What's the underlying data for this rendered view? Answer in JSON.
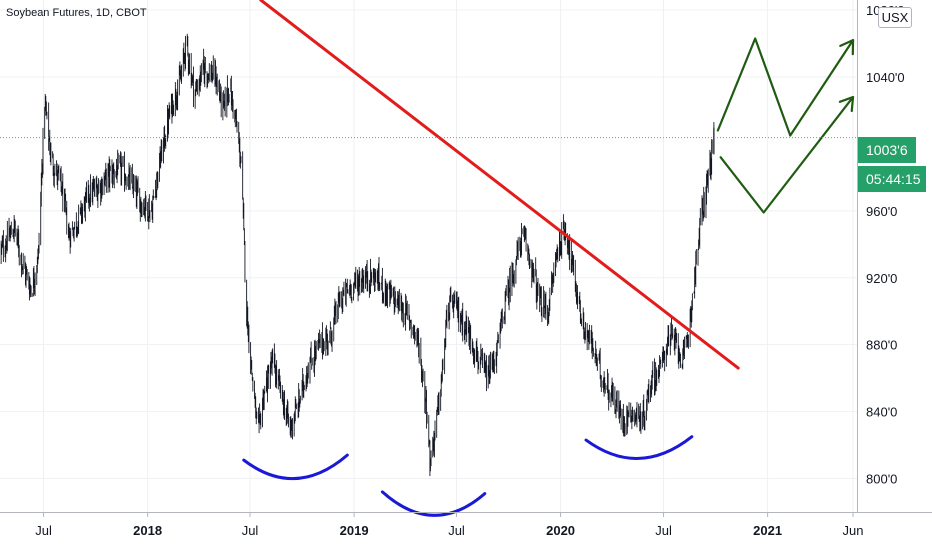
{
  "header": {
    "title": "Soybean Futures, 1D, CBOT"
  },
  "currency_label": "USX",
  "price_tag": {
    "last_price": "1003'6",
    "countdown": "05:44:15",
    "color": "#26a069"
  },
  "colors": {
    "trendline": "#e31b1b",
    "arcs": "#1a1ad6",
    "projection": "#1f5c12",
    "candle": "#131722",
    "grid": "#eef0f3"
  },
  "chart_data": {
    "type": "candlestick",
    "title": "Soybean Futures, 1D, CBOT",
    "xlabel": "",
    "ylabel": "",
    "ylim": [
      780,
      1086
    ],
    "xlim": [
      "2017-04-15",
      "2021-06-08"
    ],
    "x_ticks": [
      {
        "label": "Jul",
        "date": "2017-07-01",
        "bold": false
      },
      {
        "label": "2018",
        "date": "2018-01-01",
        "bold": true
      },
      {
        "label": "Jul",
        "date": "2018-07-01",
        "bold": false
      },
      {
        "label": "2019",
        "date": "2019-01-01",
        "bold": true
      },
      {
        "label": "Jul",
        "date": "2019-07-01",
        "bold": false
      },
      {
        "label": "2020",
        "date": "2020-01-01",
        "bold": true
      },
      {
        "label": "Jul",
        "date": "2020-07-01",
        "bold": false
      },
      {
        "label": "2021",
        "date": "2021-01-01",
        "bold": true
      },
      {
        "label": "Jun",
        "date": "2021-06-01",
        "bold": false
      }
    ],
    "y_ticks": [
      {
        "label": "800'0",
        "value": 800
      },
      {
        "label": "840'0",
        "value": 840
      },
      {
        "label": "880'0",
        "value": 880
      },
      {
        "label": "920'0",
        "value": 920
      },
      {
        "label": "960'0",
        "value": 960
      },
      {
        "label": "1040'0",
        "value": 1040
      },
      {
        "label": "1080'0",
        "value": 1080
      }
    ],
    "price_path": [
      [
        "2017-04-15",
        935
      ],
      [
        "2017-05-10",
        950
      ],
      [
        "2017-05-25",
        928
      ],
      [
        "2017-06-10",
        912
      ],
      [
        "2017-06-22",
        935
      ],
      [
        "2017-07-03",
        1025
      ],
      [
        "2017-07-15",
        990
      ],
      [
        "2017-08-01",
        975
      ],
      [
        "2017-08-15",
        945
      ],
      [
        "2017-09-01",
        955
      ],
      [
        "2017-09-20",
        970
      ],
      [
        "2017-10-10",
        975
      ],
      [
        "2017-10-25",
        982
      ],
      [
        "2017-11-15",
        985
      ],
      [
        "2017-12-05",
        975
      ],
      [
        "2017-12-20",
        965
      ],
      [
        "2018-01-08",
        960
      ],
      [
        "2018-01-20",
        985
      ],
      [
        "2018-02-10",
        1020
      ],
      [
        "2018-03-01",
        1040
      ],
      [
        "2018-03-10",
        1060
      ],
      [
        "2018-03-25",
        1030
      ],
      [
        "2018-04-10",
        1045
      ],
      [
        "2018-05-01",
        1040
      ],
      [
        "2018-05-15",
        1020
      ],
      [
        "2018-05-25",
        1035
      ],
      [
        "2018-06-05",
        1015
      ],
      [
        "2018-06-15",
        990
      ],
      [
        "2018-06-25",
        900
      ],
      [
        "2018-07-05",
        860
      ],
      [
        "2018-07-15",
        825
      ],
      [
        "2018-07-25",
        850
      ],
      [
        "2018-08-10",
        870
      ],
      [
        "2018-08-25",
        850
      ],
      [
        "2018-09-10",
        830
      ],
      [
        "2018-09-25",
        845
      ],
      [
        "2018-10-10",
        865
      ],
      [
        "2018-11-01",
        880
      ],
      [
        "2018-11-20",
        885
      ],
      [
        "2018-12-05",
        905
      ],
      [
        "2018-12-20",
        912
      ],
      [
        "2019-01-15",
        920
      ],
      [
        "2019-02-10",
        920
      ],
      [
        "2019-03-01",
        910
      ],
      [
        "2019-03-20",
        905
      ],
      [
        "2019-04-10",
        895
      ],
      [
        "2019-04-25",
        880
      ],
      [
        "2019-05-10",
        840
      ],
      [
        "2019-05-15",
        810
      ],
      [
        "2019-05-25",
        830
      ],
      [
        "2019-06-05",
        860
      ],
      [
        "2019-06-15",
        900
      ],
      [
        "2019-06-25",
        905
      ],
      [
        "2019-07-10",
        895
      ],
      [
        "2019-07-25",
        885
      ],
      [
        "2019-08-10",
        870
      ],
      [
        "2019-08-25",
        860
      ],
      [
        "2019-09-10",
        875
      ],
      [
        "2019-09-25",
        905
      ],
      [
        "2019-10-10",
        925
      ],
      [
        "2019-10-25",
        945
      ],
      [
        "2019-11-05",
        935
      ],
      [
        "2019-11-25",
        905
      ],
      [
        "2019-12-10",
        900
      ],
      [
        "2019-12-25",
        935
      ],
      [
        "2020-01-10",
        950
      ],
      [
        "2020-01-25",
        920
      ],
      [
        "2020-02-10",
        890
      ],
      [
        "2020-02-25",
        880
      ],
      [
        "2020-03-15",
        860
      ],
      [
        "2020-04-01",
        850
      ],
      [
        "2020-04-20",
        835
      ],
      [
        "2020-05-05",
        840
      ],
      [
        "2020-05-25",
        835
      ],
      [
        "2020-06-10",
        860
      ],
      [
        "2020-06-25",
        865
      ],
      [
        "2020-07-10",
        885
      ],
      [
        "2020-07-25",
        880
      ],
      [
        "2020-08-05",
        870
      ],
      [
        "2020-08-15",
        890
      ],
      [
        "2020-08-25",
        920
      ],
      [
        "2020-09-05",
        955
      ],
      [
        "2020-09-20",
        985
      ],
      [
        "2020-09-28",
        1003.75
      ]
    ],
    "annotations": {
      "trendline": [
        [
          "2018-07-20",
          1086
        ],
        [
          "2020-11-10",
          866
        ]
      ],
      "arcs": [
        {
          "from": [
            "2018-06-20",
            811
          ],
          "to": [
            "2018-12-20",
            814
          ],
          "bottom": 800
        },
        {
          "from": [
            "2019-02-20",
            792
          ],
          "to": [
            "2019-08-20",
            791
          ],
          "bottom": 778
        },
        {
          "from": [
            "2020-02-15",
            823
          ],
          "to": [
            "2020-08-20",
            825
          ],
          "bottom": 812
        }
      ],
      "projection_up": [
        [
          "2020-10-05",
          1008
        ],
        [
          "2020-12-10",
          1063
        ],
        [
          "2021-02-10",
          1005
        ],
        [
          "2021-06-01",
          1062
        ]
      ],
      "projection_down": [
        [
          "2020-10-10",
          992
        ],
        [
          "2020-12-25",
          959
        ],
        [
          "2021-06-01",
          1028
        ]
      ]
    }
  }
}
